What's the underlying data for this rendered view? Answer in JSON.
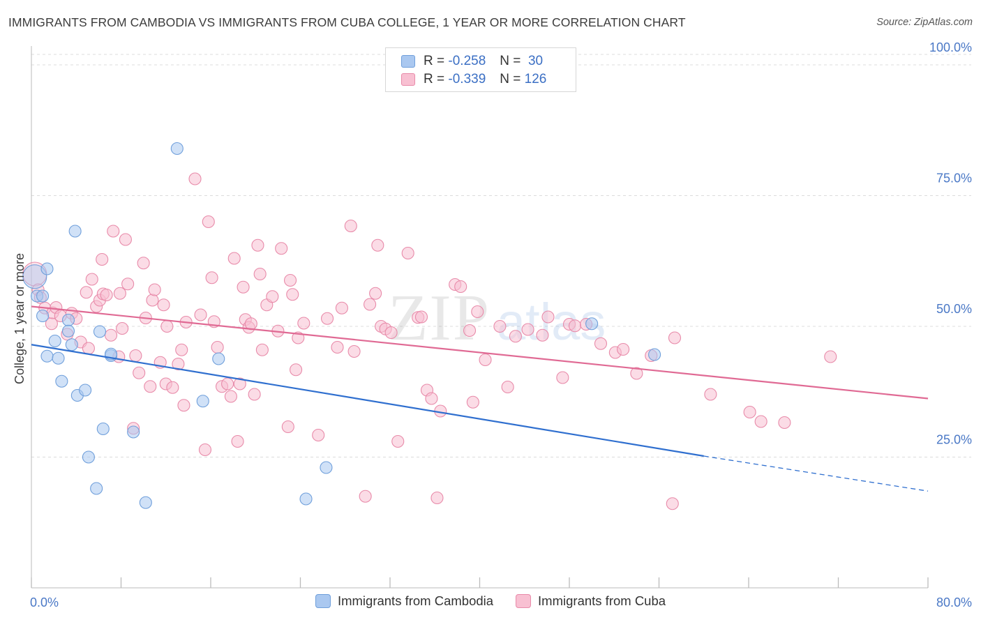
{
  "header": {
    "title": "IMMIGRANTS FROM CAMBODIA VS IMMIGRANTS FROM CUBA COLLEGE, 1 YEAR OR MORE CORRELATION CHART",
    "source": "Source: ZipAtlas.com"
  },
  "watermark": {
    "zip": "ZIP",
    "atlas": "atlas"
  },
  "legend": {
    "rows": [
      {
        "r_label": "R =",
        "r_value": "-0.258",
        "n_label": "N =",
        "n_value": "30",
        "color": "#aac8f0",
        "stroke": "#6f9fdb"
      },
      {
        "r_label": "R =",
        "r_value": "-0.339",
        "n_label": "N =",
        "n_value": "126",
        "color": "#f8c0d2",
        "stroke": "#e88aa9"
      }
    ]
  },
  "chart_data": {
    "type": "scatter",
    "title": "IMMIGRANTS FROM CAMBODIA VS IMMIGRANTS FROM CUBA COLLEGE, 1 YEAR OR MORE CORRELATION CHART",
    "xlabel": "",
    "ylabel": "College, 1 year or more",
    "xlim": [
      0,
      80
    ],
    "ylim": [
      0,
      102
    ],
    "x_tick_labels": [
      "0.0%",
      "80.0%"
    ],
    "y_ticks": [
      25,
      50,
      75,
      100
    ],
    "y_tick_labels": [
      "25.0%",
      "50.0%",
      "75.0%",
      "100.0%"
    ],
    "grid": true,
    "legend_position": "bottom",
    "series": [
      {
        "name": "Immigrants from Cambodia",
        "color": "#aac8f0",
        "stroke": "#6f9fdb",
        "line_color": "#2f6fcf",
        "trend": {
          "x0": 0,
          "y0": 46.5,
          "x1": 60,
          "y1": 25.2,
          "dash_to_x": 80,
          "dash_to_y": 18.5
        },
        "points": [
          [
            0.3,
            59.5
          ],
          [
            0.5,
            55.8
          ],
          [
            1,
            55.8
          ],
          [
            1,
            52
          ],
          [
            1.4,
            61
          ],
          [
            1.4,
            44.3
          ],
          [
            2.1,
            47.2
          ],
          [
            2.4,
            43.9
          ],
          [
            2.7,
            39.5
          ],
          [
            3.3,
            51.2
          ],
          [
            3.3,
            49.1
          ],
          [
            3.6,
            46.5
          ],
          [
            3.9,
            68.2
          ],
          [
            4.1,
            36.8
          ],
          [
            4.8,
            37.8
          ],
          [
            5.1,
            25
          ],
          [
            5.8,
            19
          ],
          [
            6.1,
            49
          ],
          [
            6.4,
            30.4
          ],
          [
            7.1,
            44.4
          ],
          [
            7.1,
            44.7
          ],
          [
            9.1,
            29.8
          ],
          [
            10.2,
            16.3
          ],
          [
            13,
            84
          ],
          [
            15.3,
            35.7
          ],
          [
            16.7,
            43.8
          ],
          [
            24.5,
            17
          ],
          [
            26.3,
            23
          ],
          [
            55.6,
            44.6
          ],
          [
            50,
            50.5
          ]
        ]
      },
      {
        "name": "Immigrants from Cuba",
        "color": "#f8c0d2",
        "stroke": "#e88aa9",
        "line_color": "#e06a94",
        "trend": {
          "x0": 0,
          "y0": 53.8,
          "x1": 80,
          "y1": 36.2
        },
        "points": [
          [
            0.3,
            60
          ],
          [
            0.6,
            57
          ],
          [
            0.8,
            55.5
          ],
          [
            1.2,
            53.5
          ],
          [
            1.8,
            50.5
          ],
          [
            1.9,
            52.6
          ],
          [
            2.2,
            53.6
          ],
          [
            2.6,
            52
          ],
          [
            3.2,
            48.5
          ],
          [
            3.6,
            52.5
          ],
          [
            4,
            51.5
          ],
          [
            4.4,
            47
          ],
          [
            4.9,
            56.5
          ],
          [
            5.1,
            45.8
          ],
          [
            5.4,
            59
          ],
          [
            5.8,
            53.8
          ],
          [
            6.1,
            55
          ],
          [
            6.3,
            62.8
          ],
          [
            6.4,
            56.2
          ],
          [
            6.7,
            56
          ],
          [
            7.1,
            48.3
          ],
          [
            7.3,
            68.2
          ],
          [
            7.8,
            44.2
          ],
          [
            7.9,
            56.3
          ],
          [
            8.1,
            49.6
          ],
          [
            8.4,
            66.6
          ],
          [
            8.6,
            58.1
          ],
          [
            9.1,
            30.5
          ],
          [
            9.3,
            44.4
          ],
          [
            9.6,
            41.1
          ],
          [
            10,
            62.1
          ],
          [
            10.2,
            51.6
          ],
          [
            10.6,
            38.5
          ],
          [
            10.8,
            55
          ],
          [
            11,
            57
          ],
          [
            11.5,
            43.1
          ],
          [
            11.8,
            54.1
          ],
          [
            12,
            39
          ],
          [
            12.1,
            50
          ],
          [
            12.6,
            38.3
          ],
          [
            13.1,
            42.8
          ],
          [
            13.4,
            45.5
          ],
          [
            13.6,
            34.9
          ],
          [
            13.8,
            50.8
          ],
          [
            14.6,
            78.2
          ],
          [
            15.1,
            52.2
          ],
          [
            15.5,
            26.4
          ],
          [
            15.8,
            70
          ],
          [
            16.1,
            59.3
          ],
          [
            16.3,
            50.9
          ],
          [
            16.6,
            46
          ],
          [
            17,
            38.5
          ],
          [
            17.5,
            39
          ],
          [
            17.8,
            36.6
          ],
          [
            18.1,
            63
          ],
          [
            18.4,
            28
          ],
          [
            18.6,
            39
          ],
          [
            18.9,
            57.5
          ],
          [
            19.1,
            51.3
          ],
          [
            19.4,
            49.8
          ],
          [
            19.6,
            50.5
          ],
          [
            19.9,
            37
          ],
          [
            20.2,
            65.5
          ],
          [
            20.4,
            60
          ],
          [
            20.6,
            45.5
          ],
          [
            21,
            54.1
          ],
          [
            21.5,
            55.7
          ],
          [
            22,
            49.1
          ],
          [
            22.3,
            64.9
          ],
          [
            22.9,
            30.8
          ],
          [
            23.1,
            58.8
          ],
          [
            23.3,
            56.1
          ],
          [
            23.6,
            41.7
          ],
          [
            23.8,
            47.8
          ],
          [
            24.3,
            50.6
          ],
          [
            25.6,
            29.2
          ],
          [
            26.4,
            51.5
          ],
          [
            27.3,
            46
          ],
          [
            27.7,
            53.5
          ],
          [
            28.5,
            69.2
          ],
          [
            28.8,
            45.2
          ],
          [
            29.8,
            17.5
          ],
          [
            30.2,
            54.2
          ],
          [
            30.7,
            56.3
          ],
          [
            30.9,
            65.5
          ],
          [
            31.2,
            50
          ],
          [
            31.6,
            49.5
          ],
          [
            32.1,
            48.8
          ],
          [
            32.7,
            28
          ],
          [
            33.6,
            64
          ],
          [
            34.5,
            51.7
          ],
          [
            34.8,
            51.8
          ],
          [
            35.3,
            37.8
          ],
          [
            35.7,
            36.2
          ],
          [
            36.2,
            17.2
          ],
          [
            36.5,
            33.8
          ],
          [
            37.8,
            58
          ],
          [
            38.3,
            57.6
          ],
          [
            39.1,
            49.2
          ],
          [
            39.4,
            35.5
          ],
          [
            39.8,
            52.8
          ],
          [
            40.5,
            43.6
          ],
          [
            41.8,
            50
          ],
          [
            42.5,
            38.4
          ],
          [
            43.2,
            48.1
          ],
          [
            44.3,
            49.4
          ],
          [
            45.6,
            48.3
          ],
          [
            46.1,
            51.8
          ],
          [
            47.4,
            40.2
          ],
          [
            48,
            50.4
          ],
          [
            48.5,
            50.1
          ],
          [
            49.5,
            50.4
          ],
          [
            50.8,
            46.7
          ],
          [
            52.1,
            45
          ],
          [
            52.8,
            45.6
          ],
          [
            54,
            41
          ],
          [
            55.3,
            44.4
          ],
          [
            57.2,
            16.1
          ],
          [
            57.4,
            47.8
          ],
          [
            60.6,
            37
          ],
          [
            64.1,
            33.6
          ],
          [
            65.1,
            31.8
          ],
          [
            67.2,
            31.6
          ],
          [
            71.3,
            44.2
          ]
        ]
      }
    ]
  }
}
